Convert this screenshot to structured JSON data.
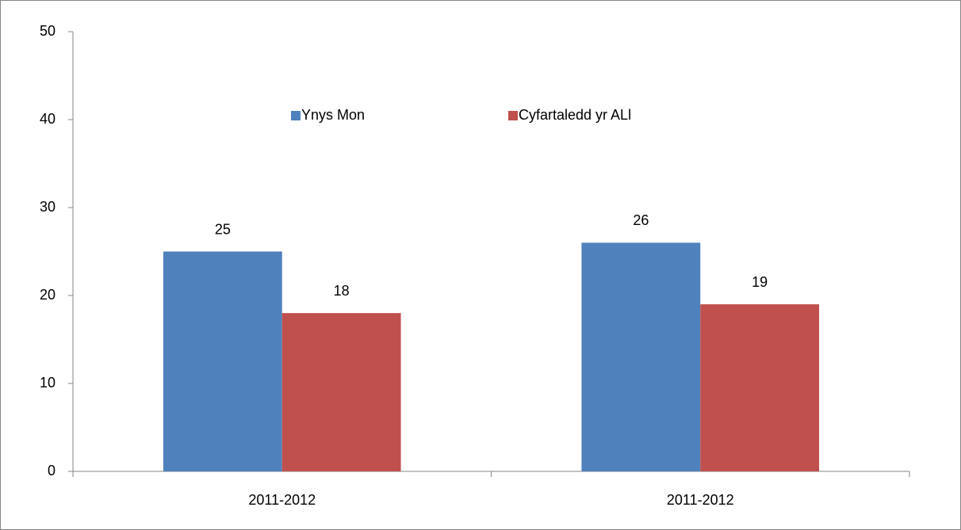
{
  "chart_data": {
    "type": "bar",
    "categories": [
      "2011-2012",
      "2011-2012"
    ],
    "series": [
      {
        "name": "Ynys Mon",
        "color": "#4f81bd",
        "values": [
          25,
          26
        ]
      },
      {
        "name": "Cyfartaledd yr ALl",
        "color": "#c0504d",
        "values": [
          18,
          19
        ]
      }
    ],
    "ylim": [
      0,
      50
    ],
    "yticks": [
      0,
      10,
      20,
      30,
      40,
      50
    ],
    "grid": false,
    "legend": "top"
  }
}
